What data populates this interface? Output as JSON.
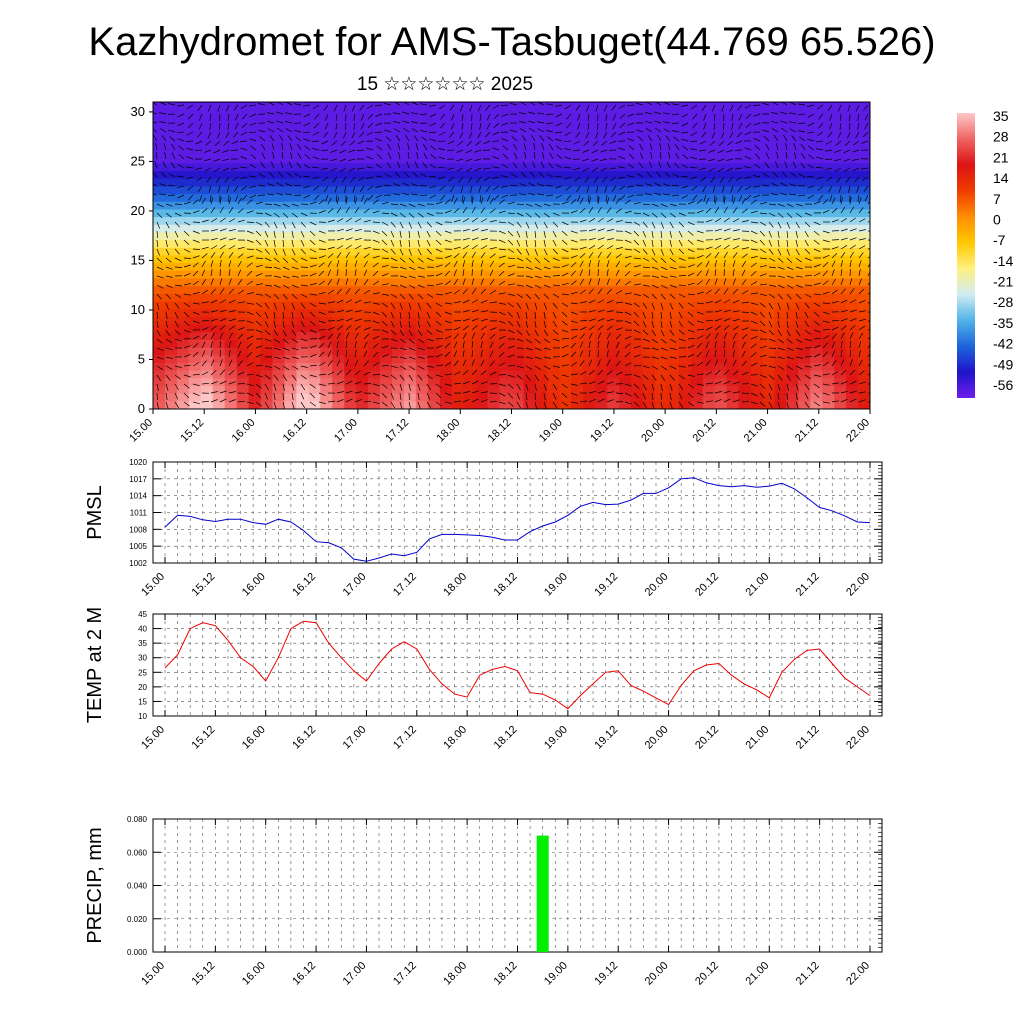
{
  "title": "Kazhydromet for AMS-Tasbuget(44.769 65.526)",
  "subtitle": "15 ☆☆☆☆☆☆ 2025",
  "time_labels": [
    "15.00",
    "15.12",
    "16.00",
    "16.12",
    "17.00",
    "17.12",
    "18.00",
    "18.12",
    "19.00",
    "19.12",
    "20.00",
    "20.12",
    "21.00",
    "21.12",
    "22.00"
  ],
  "chart_data": [
    {
      "type": "heatmap",
      "name": "temperature-wind-cross-section",
      "x": [
        "15.00",
        "15.12",
        "16.00",
        "16.12",
        "17.00",
        "17.12",
        "18.00",
        "18.12",
        "19.00",
        "19.12",
        "20.00",
        "20.12",
        "21.00",
        "21.12",
        "22.00"
      ],
      "y_ticks": [
        "0",
        "5",
        "10",
        "15",
        "20",
        "25",
        "30"
      ],
      "ylim": [
        0,
        31
      ],
      "colorbar": {
        "labels": [
          "35",
          "28",
          "21",
          "14",
          "7",
          "0",
          "-7",
          "-14",
          "-21",
          "-28",
          "-35",
          "-42",
          "-49",
          "-56"
        ],
        "range": [
          -60,
          38
        ],
        "colors": [
          "#ffc8c8",
          "#f06464",
          "#dc1414",
          "#f03c00",
          "#ff8c00",
          "#ffc800",
          "#fff080",
          "#d2ecf4",
          "#50b4e6",
          "#1e64dc",
          "#1e14c8",
          "#6e1eeb"
        ]
      },
      "surface_temp": [
        27,
        41,
        22,
        42,
        22,
        35,
        17,
        27,
        13,
        25,
        14,
        28,
        16,
        33,
        17
      ],
      "contours": "filled temperature contours with wind barbs"
    },
    {
      "type": "line",
      "ylabel": "PMSL",
      "y_ticks": [
        "1002",
        "1005",
        "1008",
        "1011",
        "1014",
        "1017",
        "1020"
      ],
      "ylim": [
        1002,
        1020
      ],
      "color": "#0000cc",
      "values": [
        1008.4,
        1010.5,
        1010.3,
        1009.7,
        1009.4,
        1009.8,
        1009.8,
        1009.2,
        1008.9,
        1009.8,
        1009.3,
        1007.8,
        1005.8,
        1005.6,
        1004.7,
        1002.7,
        1002.3,
        1002.9,
        1003.6,
        1003.3,
        1003.9,
        1006.3,
        1007.1,
        1007.1,
        1007.0,
        1006.9,
        1006.6,
        1006.1,
        1006.1,
        1007.6,
        1008.6,
        1009.3,
        1010.5,
        1012.1,
        1012.8,
        1012.4,
        1012.5,
        1013.2,
        1014.4,
        1014.4,
        1015.4,
        1017.0,
        1017.2,
        1016.3,
        1015.8,
        1015.6,
        1015.8,
        1015.5,
        1015.7,
        1016.2,
        1015.2,
        1013.6,
        1011.9,
        1011.3,
        1010.4,
        1009.3,
        1009.2
      ]
    },
    {
      "type": "line",
      "ylabel": "TEMP at 2 M",
      "y_ticks": [
        "10",
        "15",
        "20",
        "25",
        "30",
        "35",
        "40",
        "45"
      ],
      "ylim": [
        10,
        45
      ],
      "color": "#ee0000",
      "values": [
        26.5,
        31,
        40,
        42,
        41,
        36,
        30,
        27,
        22,
        30,
        40,
        42.5,
        42,
        35,
        30,
        25.5,
        22,
        28,
        33,
        35.5,
        33,
        26,
        21,
        17.5,
        16.5,
        24,
        26,
        27,
        25.5,
        18,
        17.5,
        15.5,
        12.5,
        17,
        21,
        25,
        25.5,
        20.5,
        18.5,
        16.2,
        13.9,
        20.5,
        25.5,
        27.5,
        28,
        24,
        21,
        19,
        16.2,
        25,
        29.5,
        32.5,
        33,
        28,
        23,
        20,
        17
      ]
    },
    {
      "type": "bar",
      "ylabel": "PRECIP, mm",
      "y_ticks": [
        "0.000",
        "0.020",
        "0.040",
        "0.060",
        "0.080"
      ],
      "ylim": [
        0,
        0.08
      ],
      "color": "#00ee00",
      "bars": [
        {
          "x": 18.75,
          "value": 0.07
        }
      ]
    }
  ]
}
